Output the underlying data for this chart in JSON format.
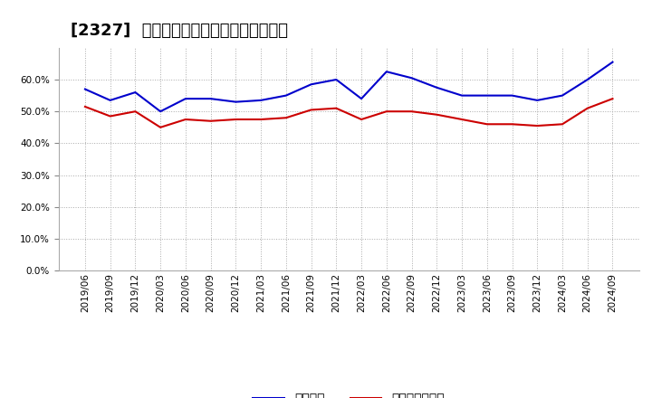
{
  "title": "[2327]  固定比率、固定長期適合率の推移",
  "x_labels": [
    "2019/06",
    "2019/09",
    "2019/12",
    "2020/03",
    "2020/06",
    "2020/09",
    "2020/12",
    "2021/03",
    "2021/06",
    "2021/09",
    "2021/12",
    "2022/03",
    "2022/06",
    "2022/09",
    "2022/12",
    "2023/03",
    "2023/06",
    "2023/09",
    "2023/12",
    "2024/03",
    "2024/06",
    "2024/09"
  ],
  "blue_values": [
    57.0,
    53.5,
    56.0,
    50.0,
    54.0,
    54.0,
    53.0,
    53.5,
    55.0,
    58.5,
    60.0,
    54.0,
    62.5,
    60.5,
    57.5,
    55.0,
    55.0,
    55.0,
    53.5,
    55.0,
    60.0,
    65.5
  ],
  "red_values": [
    51.5,
    48.5,
    50.0,
    45.0,
    47.5,
    47.0,
    47.5,
    47.5,
    48.0,
    50.5,
    51.0,
    47.5,
    50.0,
    50.0,
    49.0,
    47.5,
    46.0,
    46.0,
    45.5,
    46.0,
    51.0,
    54.0
  ],
  "blue_color": "#0000cc",
  "red_color": "#cc0000",
  "bg_color": "#ffffff",
  "plot_bg_color": "#ffffff",
  "grid_color": "#aaaaaa",
  "yticks": [
    0.0,
    10.0,
    20.0,
    30.0,
    40.0,
    50.0,
    60.0
  ],
  "ylim": [
    0.0,
    70.0
  ],
  "legend_blue": "固定比率",
  "legend_red": "固定長期適合率",
  "title_fontsize": 13,
  "tick_fontsize": 7.5,
  "legend_fontsize": 10
}
